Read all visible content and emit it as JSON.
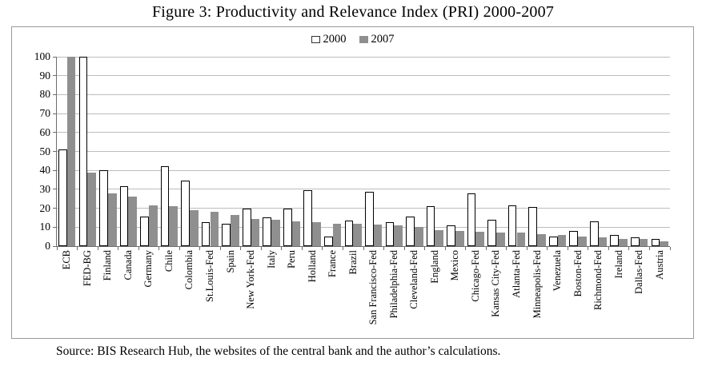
{
  "figure": {
    "title": "Figure 3: Productivity and Relevance Index (PRI) 2000-2007"
  },
  "source_note": "Source: BIS Research Hub, the websites of the central bank and the author’s calculations.",
  "legend": {
    "items": [
      {
        "key": "2000",
        "label": "2000",
        "swatch": "white-outlined-square"
      },
      {
        "key": "2007",
        "label": "2007",
        "swatch": "gray-square"
      }
    ],
    "position": "top-center"
  },
  "colors": {
    "bar_2000_fill": "#ffffff",
    "bar_2000_border": "#000000",
    "bar_2007_fill": "#8f8f8f",
    "gridline": "#bdbdbd",
    "axis": "#6e6e6e",
    "chart_border": "#9a9a9a",
    "text": "#000000"
  },
  "chart_data": {
    "type": "bar",
    "title": "Figure 3: Productivity and Relevance Index (PRI) 2000-2007",
    "xlabel": "",
    "ylabel": "",
    "ylim": [
      0,
      100
    ],
    "yticks": [
      0,
      10,
      20,
      30,
      40,
      50,
      60,
      70,
      80,
      90,
      100
    ],
    "grid": true,
    "legend_position": "top-center",
    "categories": [
      "ECB",
      "FED-BG",
      "Finland",
      "Canada",
      "Germany",
      "Chile",
      "Colombia",
      "St.Louis-Fed",
      "Spain",
      "New York-Fed",
      "Italy",
      "Peru",
      "Holland",
      "France",
      "Brazil",
      "San Francisco-Fed",
      "Philadelphia-Fed",
      "Cleveland-Fed",
      "England",
      "Mexico",
      "Chicago-Fed",
      "Kansas City-Fed",
      "Atlanta-Fed",
      "Minneapolis-Fed",
      "Venezuela",
      "Boston-Fed",
      "Richmond-Fed",
      "Ireland",
      "Dallas-Fed",
      "Austria"
    ],
    "series": [
      {
        "name": "2000",
        "values": [
          51,
          100,
          40,
          31.5,
          15.5,
          42,
          34.5,
          12.5,
          12,
          20,
          15,
          20,
          29.5,
          5,
          13.5,
          28.5,
          12.5,
          15.5,
          21,
          11,
          28,
          14,
          21.5,
          20.5,
          5,
          8,
          13,
          6,
          4.5,
          4
        ]
      },
      {
        "name": "2007",
        "values": [
          100,
          39,
          28,
          26,
          21.5,
          21,
          19,
          18,
          16.5,
          14.5,
          14,
          13,
          12.5,
          12,
          12,
          11.5,
          11,
          10,
          8.5,
          8,
          7.5,
          7,
          7,
          6.5,
          6,
          5,
          4.5,
          4,
          4,
          2.5
        ]
      }
    ]
  }
}
